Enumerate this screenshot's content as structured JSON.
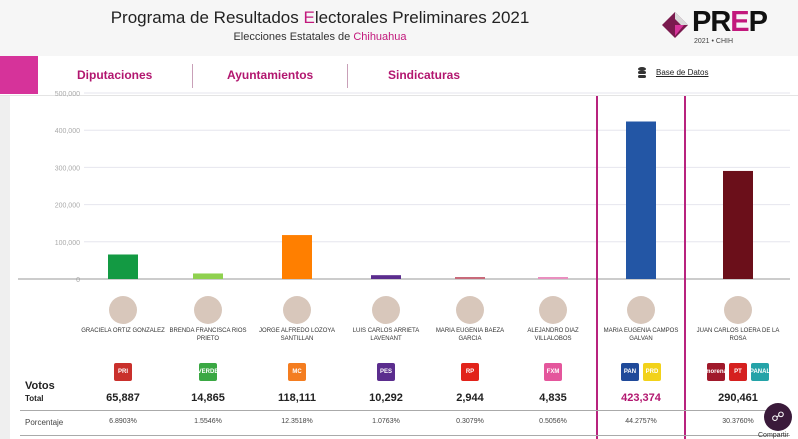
{
  "header": {
    "title_pre": "Programa de Resultados ",
    "title_e": "E",
    "title_post": "lectorales Preliminares 2021",
    "subtitle_pre": "Elecciones Estatales de ",
    "subtitle_state": "Chihuahua",
    "logo_text_p": "PR",
    "logo_text_e": "E",
    "logo_text_end": "P",
    "logo_year": "2021  •  CHIH"
  },
  "nav": {
    "tabs": [
      "Diputaciones",
      "Ayuntamientos",
      "Sindicaturas"
    ],
    "database": "Base de Datos"
  },
  "colors": {
    "accent": "#c2187c",
    "highlight_border": "#b8237e"
  },
  "table": {
    "votes_label": "Votos",
    "total_label": "Total",
    "pct_label": "Porcentaje"
  },
  "candidates": [
    {
      "name": "Graciela Ortiz Gonzalez",
      "parties": [
        {
          "label": "PRI",
          "color": "#c9302c"
        }
      ],
      "votes": "65,887",
      "pct": "6.8903%"
    },
    {
      "name": "Brenda Francisca Rios Prieto",
      "parties": [
        {
          "label": "VERDE",
          "color": "#3aa843"
        }
      ],
      "votes": "14,865",
      "pct": "1.5546%"
    },
    {
      "name": "Jorge Alfredo Lozoya Santillan",
      "parties": [
        {
          "label": "MC",
          "color": "#f47d20"
        }
      ],
      "votes": "118,111",
      "pct": "12.3518%"
    },
    {
      "name": "Luis Carlos Arrieta Lavenant",
      "parties": [
        {
          "label": "PES",
          "color": "#5b2d8e"
        }
      ],
      "votes": "10,292",
      "pct": "1.0763%"
    },
    {
      "name": "Maria Eugenia Baeza Garcia",
      "parties": [
        {
          "label": "RP",
          "color": "#e2231a"
        }
      ],
      "votes": "2,944",
      "pct": "0.3079%"
    },
    {
      "name": "Alejandro Diaz Villalobos",
      "parties": [
        {
          "label": "FXM",
          "color": "#e4569c"
        }
      ],
      "votes": "4,835",
      "pct": "0.5056%"
    },
    {
      "name": "Maria Eugenia Campos Galvan",
      "parties": [
        {
          "label": "PAN",
          "color": "#1f4a9a"
        },
        {
          "label": "PRD",
          "color": "#f2d21a"
        }
      ],
      "votes": "423,374",
      "pct": "44.2757%"
    },
    {
      "name": "Juan Carlos Loera de la Rosa",
      "parties": [
        {
          "label": "morena",
          "color": "#a0192b"
        },
        {
          "label": "PT",
          "color": "#d5201f"
        },
        {
          "label": "PANAL",
          "color": "#24a3a8"
        }
      ],
      "votes": "290,461",
      "pct": "30.3760%"
    }
  ],
  "share": {
    "label": "Compartir"
  },
  "chart_data": {
    "type": "bar",
    "categories": [
      "Graciela Ortiz Gonzalez",
      "Brenda Francisca Rios Prieto",
      "Jorge Alfredo Lozoya Santillan",
      "Luis Carlos Arrieta Lavenant",
      "Maria Eugenia Baeza Garcia",
      "Alejandro Diaz Villalobos",
      "Maria Eugenia Campos Galvan",
      "Juan Carlos Loera de la Rosa"
    ],
    "values": [
      65887,
      14865,
      118111,
      10292,
      2944,
      4835,
      423374,
      290461
    ],
    "colors": [
      "#139a43",
      "#8fd14f",
      "#ff7f00",
      "#5b2d8e",
      "#c86a7a",
      "#e98fbf",
      "#2356a5",
      "#6b0f1a"
    ],
    "ylim": [
      0,
      500000
    ],
    "yticks": [
      "0",
      "100,000",
      "200,000",
      "300,000",
      "400,000",
      "500,000"
    ],
    "grid": true
  }
}
